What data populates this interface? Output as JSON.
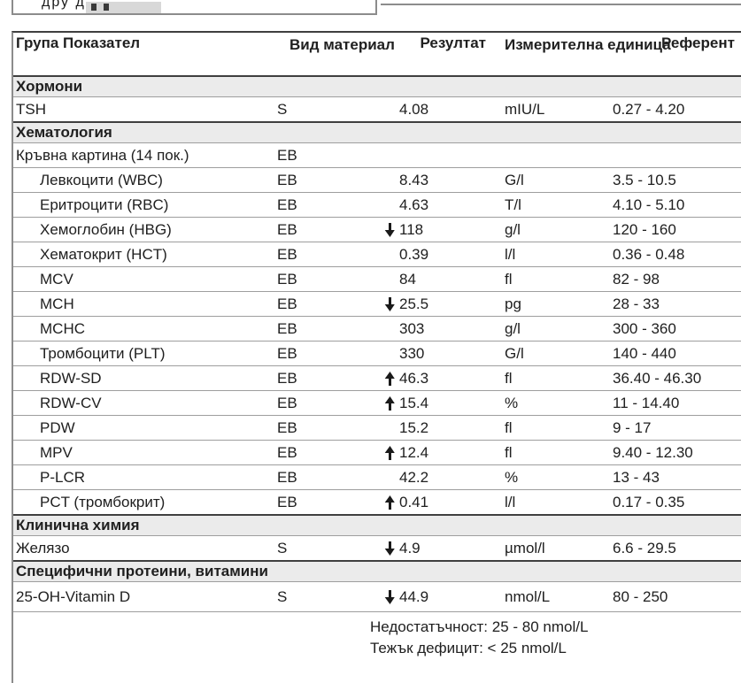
{
  "colors": {
    "border_dark": "#3f3f3f",
    "border_grey": "#9e9e9e",
    "outer_border": "#8c8c8c",
    "section_bg": "#ebebeb",
    "text": "#202020"
  },
  "top_widget": {
    "cut_text": "дру  д"
  },
  "table": {
    "headers": {
      "group": "Група Показател",
      "material": "Вид материал",
      "result": "Резултат",
      "unit": "Измерителна единица",
      "reference": "Референт"
    },
    "rows": [
      {
        "type": "section",
        "label": "Хормони"
      },
      {
        "type": "test",
        "name": "TSH",
        "indent": 0,
        "material": "S",
        "flag": "",
        "result": "4.08",
        "unit": "mIU/L",
        "ref": "0.27 - 4.20"
      },
      {
        "type": "section",
        "label": "Хематология"
      },
      {
        "type": "test",
        "name": "Кръвна картина (14 пок.)",
        "indent": 0,
        "material": "EB",
        "flag": "",
        "result": "",
        "unit": "",
        "ref": ""
      },
      {
        "type": "test",
        "name": "Левкоцити (WBC)",
        "indent": 1,
        "material": "EB",
        "flag": "",
        "result": "8.43",
        "unit": "G/l",
        "ref": "3.5 - 10.5"
      },
      {
        "type": "test",
        "name": "Еритроцити (RBC)",
        "indent": 1,
        "material": "EB",
        "flag": "",
        "result": "4.63",
        "unit": "T/l",
        "ref": "4.10 - 5.10"
      },
      {
        "type": "test",
        "name": "Хемоглобин (HBG)",
        "indent": 1,
        "material": "EB",
        "flag": "low",
        "result": "118",
        "unit": "g/l",
        "ref": "120 - 160"
      },
      {
        "type": "test",
        "name": "Хематокрит (HCT)",
        "indent": 1,
        "material": "EB",
        "flag": "",
        "result": "0.39",
        "unit": "l/l",
        "ref": "0.36 - 0.48"
      },
      {
        "type": "test",
        "name": "MCV",
        "indent": 1,
        "material": "EB",
        "flag": "",
        "result": "84",
        "unit": "fl",
        "ref": "82 - 98"
      },
      {
        "type": "test",
        "name": "MCH",
        "indent": 1,
        "material": "EB",
        "flag": "low",
        "result": "25.5",
        "unit": "pg",
        "ref": "28 - 33"
      },
      {
        "type": "test",
        "name": "MCHC",
        "indent": 1,
        "material": "EB",
        "flag": "",
        "result": "303",
        "unit": "g/l",
        "ref": "300 - 360"
      },
      {
        "type": "test",
        "name": "Тромбоцити (PLT)",
        "indent": 1,
        "material": "EB",
        "flag": "",
        "result": "330",
        "unit": "G/l",
        "ref": "140 - 440"
      },
      {
        "type": "test",
        "name": "RDW-SD",
        "indent": 1,
        "material": "EB",
        "flag": "high",
        "result": "46.3",
        "unit": "fl",
        "ref": "36.40 - 46.30"
      },
      {
        "type": "test",
        "name": "RDW-CV",
        "indent": 1,
        "material": "EB",
        "flag": "high",
        "result": "15.4",
        "unit": "%",
        "ref": "11 - 14.40"
      },
      {
        "type": "test",
        "name": "PDW",
        "indent": 1,
        "material": "EB",
        "flag": "",
        "result": "15.2",
        "unit": "fl",
        "ref": "9 - 17"
      },
      {
        "type": "test",
        "name": "MPV",
        "indent": 1,
        "material": "EB",
        "flag": "high",
        "result": "12.4",
        "unit": "fl",
        "ref": "9.40 - 12.30"
      },
      {
        "type": "test",
        "name": "P-LCR",
        "indent": 1,
        "material": "EB",
        "flag": "",
        "result": "42.2",
        "unit": "%",
        "ref": "13 - 43"
      },
      {
        "type": "test",
        "name": "PCT (тромбокрит)",
        "indent": 1,
        "material": "EB",
        "flag": "high",
        "result": "0.41",
        "unit": "l/l",
        "ref": "0.17 - 0.35"
      },
      {
        "type": "section",
        "label": "Клинична химия"
      },
      {
        "type": "test",
        "name": "Желязо",
        "indent": 0,
        "material": "S",
        "flag": "low",
        "result": "4.9",
        "unit": "µmol/l",
        "ref": "6.6 - 29.5"
      },
      {
        "type": "section",
        "label": "Специфични протеини, витамини"
      },
      {
        "type": "test",
        "name": "25-OH-Vitamin D",
        "indent": 0,
        "material": "S",
        "flag": "low",
        "result": "44.9",
        "unit": "nmol/L",
        "ref": "80 - 250",
        "tall": true
      },
      {
        "type": "note",
        "lines": [
          "Недостатъчност: 25 - 80 nmol/L",
          "Тежък дефицит: < 25 nmol/L"
        ]
      }
    ]
  }
}
